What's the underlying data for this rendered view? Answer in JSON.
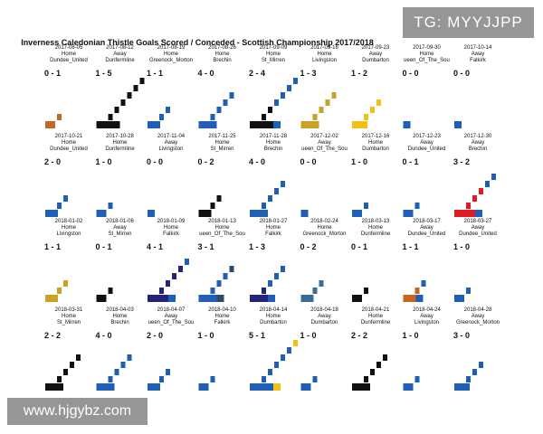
{
  "colors": {
    "dundee_united": "#b8862a",
    "dunfermline": "#111111",
    "greenock_morton": "#1f5fb5",
    "brechin": "#1f5fb5",
    "st_mirren": "#111111",
    "livingston": "#d4a21f",
    "dumbarton": "#1f5fb5",
    "queen_of_the_south": "#1f5fb5",
    "falkirk": "#1f5fb5",
    "text": "#111111"
  },
  "watermarks": {
    "top_right": "TG: MYYJJPP",
    "bottom_left": "www.hjgybz.com"
  },
  "chart_data": {
    "type": "heatmap",
    "title": "Inverness Caledonian Thistle Goals Scored / Conceded - Scottish Championship 2017/2018",
    "grid": false,
    "matches": [
      {
        "date": "2017-08-05",
        "venue": "Home",
        "opponent": "Dundee_United",
        "score": "0 - 1",
        "scored": 0,
        "conceded": 1,
        "color": "#c06a2a",
        "secondary": null
      },
      {
        "date": "2017-08-12",
        "venue": "Away",
        "opponent": "Dunfermline",
        "score": "1 - 5",
        "scored": 1,
        "conceded": 5,
        "color": "#111111",
        "secondary": null
      },
      {
        "date": "2017-08-19",
        "venue": "Home",
        "opponent": "Greenock_Morton",
        "score": "1 - 1",
        "scored": 1,
        "conceded": 1,
        "color": "#1f5fb5",
        "secondary": null
      },
      {
        "date": "2017-08-26",
        "venue": "Home",
        "opponent": "Brechin",
        "score": "4 - 0",
        "scored": 4,
        "conceded": 0,
        "color": "#1f5fb5",
        "secondary": null
      },
      {
        "date": "2017-09-09",
        "venue": "Home",
        "opponent": "St_Mirren",
        "score": "2 - 4",
        "scored": 2,
        "conceded": 4,
        "color": "#111111",
        "secondary": "#1f5fb5"
      },
      {
        "date": "2017-09-16",
        "venue": "Home",
        "opponent": "Livingston",
        "score": "1 - 3",
        "scored": 1,
        "conceded": 3,
        "color": "#c9a227",
        "secondary": null
      },
      {
        "date": "2017-09-23",
        "venue": "Away",
        "opponent": "Dumbarton",
        "score": "1 - 2",
        "scored": 1,
        "conceded": 2,
        "color": "#f2c012",
        "secondary": null
      },
      {
        "date": "2017-09-30",
        "venue": "Home",
        "opponent": "Queen_Of_The_South",
        "display_opponent": "ueen_Of_The_Sou",
        "score": "0 - 0",
        "scored": 0,
        "conceded": 0,
        "color": "#1f5fb5",
        "secondary": null
      },
      {
        "date": "2017-10-14",
        "venue": "Away",
        "opponent": "Falkirk",
        "score": "0 - 0",
        "scored": 0,
        "conceded": 0,
        "color": "#1f5fb5",
        "secondary": null
      },
      {
        "date": "2017-10-21",
        "venue": "Home",
        "opponent": "Dundee_United",
        "score": "2 - 0",
        "scored": 2,
        "conceded": 0,
        "color": "#1f5fb5",
        "secondary": null
      },
      {
        "date": "2017-10-28",
        "venue": "Home",
        "opponent": "Dunfermline",
        "score": "1 - 0",
        "scored": 1,
        "conceded": 0,
        "color": "#1f5fb5",
        "secondary": null
      },
      {
        "date": "2017-11-04",
        "venue": "Away",
        "opponent": "Livingston",
        "score": "0 - 0",
        "scored": 0,
        "conceded": 0,
        "color": "#1f5fb5",
        "secondary": null
      },
      {
        "date": "2017-11-25",
        "venue": "Home",
        "opponent": "St_Mirren",
        "score": "0 - 2",
        "scored": 0,
        "conceded": 2,
        "color": "#111111",
        "secondary": null
      },
      {
        "date": "2017-11-28",
        "venue": "Home",
        "opponent": "Brechin",
        "score": "4 - 0",
        "scored": 4,
        "conceded": 0,
        "color": "#1f5fb5",
        "secondary": null
      },
      {
        "date": "2017-12-02",
        "venue": "Away",
        "opponent": "Queen_Of_The_South",
        "display_opponent": "ueen_Of_The_Sou",
        "score": "0 - 0",
        "scored": 0,
        "conceded": 0,
        "color": "#1f5fb5",
        "secondary": null
      },
      {
        "date": "2017-12-16",
        "venue": "Home",
        "opponent": "Dumbarton",
        "score": "1 - 0",
        "scored": 1,
        "conceded": 0,
        "color": "#1f5fb5",
        "secondary": null
      },
      {
        "date": "2017-12-23",
        "venue": "Away",
        "opponent": "Dundee_United",
        "score": "0 - 1",
        "scored": 0,
        "conceded": 1,
        "color": "#1f5fb5",
        "secondary": null
      },
      {
        "date": "2017-12-30",
        "venue": "Away",
        "opponent": "Brechin",
        "score": "3 - 2",
        "scored": 3,
        "conceded": 2,
        "color": "#e01b24",
        "secondary": "#1f5fb5"
      },
      {
        "date": "2018-01-02",
        "venue": "Home",
        "opponent": "Livingston",
        "score": "1 - 1",
        "scored": 1,
        "conceded": 1,
        "color": "#c9a227",
        "secondary": null
      },
      {
        "date": "2018-01-06",
        "venue": "Away",
        "opponent": "St_Mirren",
        "score": "0 - 1",
        "scored": 0,
        "conceded": 1,
        "color": "#111111",
        "secondary": null
      },
      {
        "date": "2018-01-09",
        "venue": "Home",
        "opponent": "Falkirk",
        "score": "4 - 1",
        "scored": 4,
        "conceded": 1,
        "color": "#23237a",
        "secondary": "#1f5fb5"
      },
      {
        "date": "2018-01-13",
        "venue": "Home",
        "opponent": "Queen_Of_The_South",
        "display_opponent": "ueen_Of_The_Sou",
        "score": "3 - 1",
        "scored": 3,
        "conceded": 1,
        "color": "#1f5fb5",
        "secondary": "#2a4a6a"
      },
      {
        "date": "2018-01-27",
        "venue": "Home",
        "opponent": "Falkirk",
        "score": "1 - 3",
        "scored": 1,
        "conceded": 3,
        "color": "#23237a",
        "secondary": "#1f5fb5"
      },
      {
        "date": "2018-02-24",
        "venue": "Home",
        "opponent": "Greenock_Morton",
        "score": "0 - 2",
        "scored": 0,
        "conceded": 2,
        "color": "#3a6d96",
        "secondary": null
      },
      {
        "date": "2018-03-13",
        "venue": "Home",
        "opponent": "Dunfermline",
        "score": "0 - 1",
        "scored": 0,
        "conceded": 1,
        "color": "#111111",
        "secondary": null
      },
      {
        "date": "2018-03-17",
        "venue": "Away",
        "opponent": "Dundee_United",
        "score": "1 - 1",
        "scored": 1,
        "conceded": 1,
        "color": "#c86420",
        "secondary": "#1f5fb5"
      },
      {
        "date": "2018-03-27",
        "venue": "Away",
        "opponent": "Dundee_United",
        "score": "1 - 0",
        "scored": 1,
        "conceded": 0,
        "color": "#1f5fb5",
        "secondary": null
      },
      {
        "date": "2018-03-31",
        "venue": "Home",
        "opponent": "St_Mirren",
        "score": "2 - 2",
        "scored": 2,
        "conceded": 2,
        "color": "#111111",
        "secondary": null
      },
      {
        "date": "2018-04-03",
        "venue": "Home",
        "opponent": "Brechin",
        "score": "4 - 0",
        "scored": 4,
        "conceded": 0,
        "color": "#1f5fb5",
        "secondary": null
      },
      {
        "date": "2018-04-07",
        "venue": "Away",
        "opponent": "Queen_Of_The_South",
        "display_opponent": "ueen_Of_The_Sou",
        "score": "2 - 0",
        "scored": 2,
        "conceded": 0,
        "color": "#1f5fb5",
        "secondary": null
      },
      {
        "date": "2018-04-10",
        "venue": "Home",
        "opponent": "Falkirk",
        "score": "1 - 0",
        "scored": 1,
        "conceded": 0,
        "color": "#1f5fb5",
        "secondary": null
      },
      {
        "date": "2018-04-14",
        "venue": "Home",
        "opponent": "Dumbarton",
        "score": "5 - 1",
        "scored": 5,
        "conceded": 1,
        "color": "#1f5fb5",
        "secondary": "#f2c012"
      },
      {
        "date": "2018-04-18",
        "venue": "Away",
        "opponent": "Dumbarton",
        "score": "1 - 0",
        "scored": 1,
        "conceded": 0,
        "color": "#1f5fb5",
        "secondary": null
      },
      {
        "date": "2018-04-21",
        "venue": "Home",
        "opponent": "Dunfermline",
        "score": "2 - 2",
        "scored": 2,
        "conceded": 2,
        "color": "#111111",
        "secondary": null
      },
      {
        "date": "2018-04-24",
        "venue": "Away",
        "opponent": "Livingston",
        "score": "1 - 0",
        "scored": 1,
        "conceded": 0,
        "color": "#1f5fb5",
        "secondary": null
      },
      {
        "date": "2018-04-28",
        "venue": "Away",
        "opponent": "Greenock_Morton",
        "score": "3 - 0",
        "scored": 3,
        "conceded": 0,
        "color": "#1f5fb5",
        "secondary": null
      }
    ]
  }
}
